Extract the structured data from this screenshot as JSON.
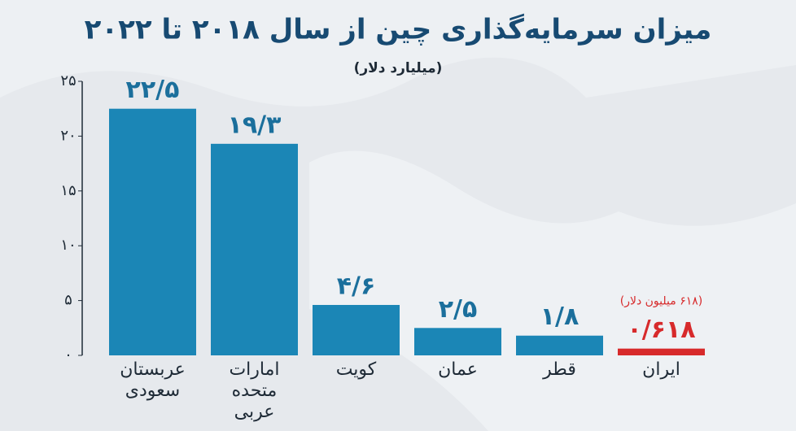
{
  "chart_data": {
    "type": "bar",
    "title": "میزان سرمایه‌گذاری چین از سال ۲۰۱۸ تا ۲۰۲۲",
    "subtitle": "(میلیارد دلار)",
    "categories": [
      "عربستان سعودی",
      "امارات متحده عربی",
      "کویت",
      "عمان",
      "قطر",
      "ایران"
    ],
    "values": [
      22.5,
      19.3,
      4.6,
      2.5,
      1.8,
      0.618
    ],
    "value_labels": [
      "۲۲/۵",
      "۱۹/۳",
      "۴/۶",
      "۲/۵",
      "۱/۸",
      "۰/۶۱۸"
    ],
    "colors": [
      "#1b86b6",
      "#1b86b6",
      "#1b86b6",
      "#1b86b6",
      "#1b86b6",
      "#d72a2b"
    ],
    "annotation": "(۶۱۸ میلیون دلار)",
    "ylim": [
      0,
      25
    ],
    "yticks": [
      {
        "value": 0,
        "label": "۰"
      },
      {
        "value": 5,
        "label": "۵"
      },
      {
        "value": 10,
        "label": "۱۰"
      },
      {
        "value": 15,
        "label": "۱۵"
      },
      {
        "value": 20,
        "label": "۲۰"
      },
      {
        "value": 25,
        "label": "۲۵"
      }
    ],
    "grid": false
  }
}
